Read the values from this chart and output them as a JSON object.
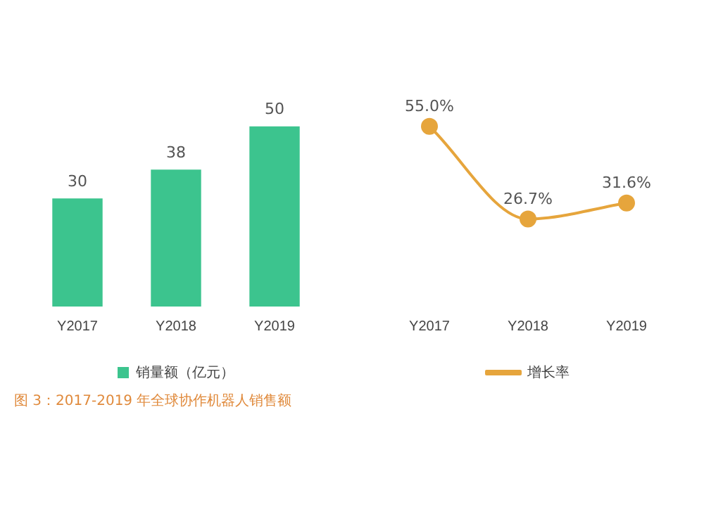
{
  "chart_data": [
    {
      "type": "bar",
      "categories": [
        "Y2017",
        "Y2018",
        "Y2019"
      ],
      "series": [
        {
          "name": "销量额（亿元）",
          "color": "#3cc48e",
          "values": [
            30,
            38,
            50
          ]
        }
      ],
      "data_labels": true,
      "legend": "bottom",
      "grid": false,
      "annotations": [
        "图 3：2017-2019 年全球协作机器人销售额"
      ]
    },
    {
      "type": "line",
      "categories": [
        "Y2017",
        "Y2018",
        "Y2019"
      ],
      "series": [
        {
          "name": "增长率",
          "color": "#e6a53c",
          "values": [
            55.0,
            26.7,
            31.6
          ],
          "value_labels": [
            "55.0%",
            "26.7%",
            "31.6%"
          ]
        }
      ],
      "marker": "circle",
      "legend": "bottom",
      "grid": false
    }
  ]
}
